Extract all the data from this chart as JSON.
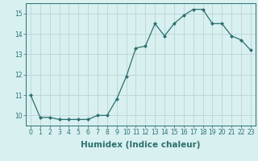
{
  "x": [
    0,
    1,
    2,
    3,
    4,
    5,
    6,
    7,
    8,
    9,
    10,
    11,
    12,
    13,
    14,
    15,
    16,
    17,
    18,
    19,
    20,
    21,
    22,
    23
  ],
  "y": [
    11.0,
    9.9,
    9.9,
    9.8,
    9.8,
    9.8,
    9.8,
    10.0,
    10.0,
    10.8,
    11.9,
    13.3,
    13.4,
    14.5,
    13.9,
    14.5,
    14.9,
    15.2,
    15.2,
    14.5,
    14.5,
    13.9,
    13.7,
    13.2
  ],
  "line_color": "#2d7070",
  "marker": "D",
  "marker_size": 2.0,
  "bg_color": "#d8f0f0",
  "grid_color": "#c0d8d8",
  "xlabel": "Humidex (Indice chaleur)",
  "ylim": [
    9.5,
    15.5
  ],
  "xlim": [
    -0.5,
    23.5
  ],
  "yticks": [
    10,
    11,
    12,
    13,
    14,
    15
  ],
  "xticks": [
    0,
    1,
    2,
    3,
    4,
    5,
    6,
    7,
    8,
    9,
    10,
    11,
    12,
    13,
    14,
    15,
    16,
    17,
    18,
    19,
    20,
    21,
    22,
    23
  ],
  "tick_labelsize": 5.5,
  "xlabel_fontsize": 7.5,
  "linewidth": 0.9
}
